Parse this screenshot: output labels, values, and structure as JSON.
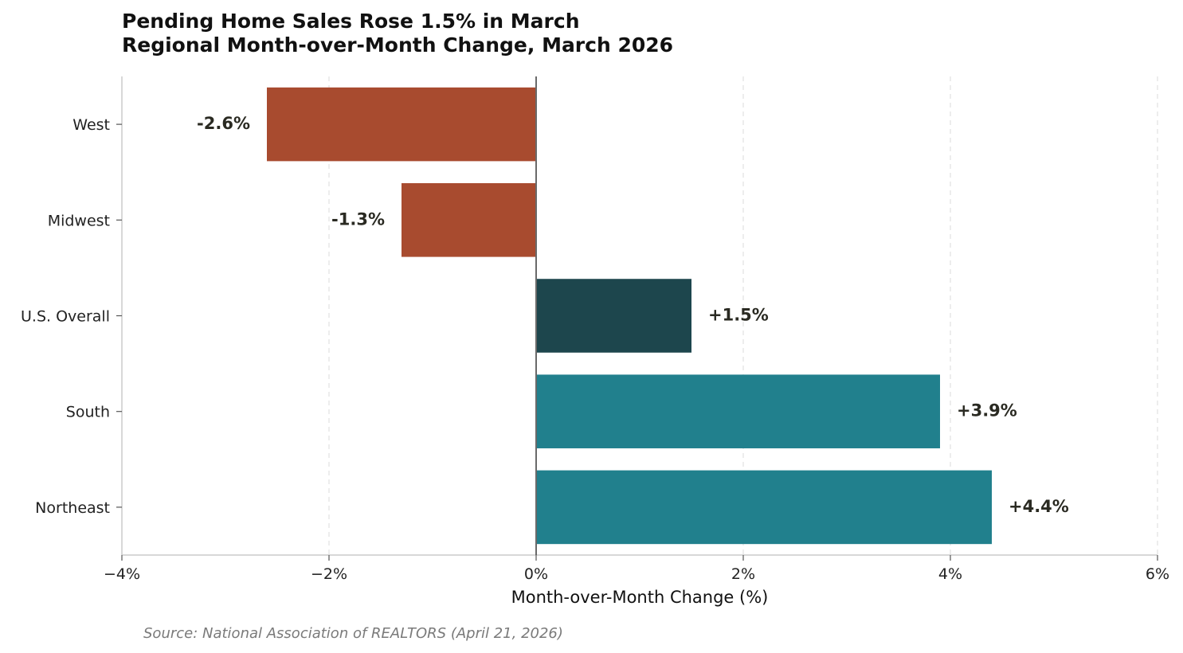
{
  "chart_data": {
    "type": "bar",
    "orientation": "horizontal",
    "title": "Pending Home Sales Rose 1.5% in March",
    "subtitle": "Regional Month-over-Month Change, March 2026",
    "xlabel": "Month-over-Month Change (%)",
    "ylabel": "",
    "xlim": [
      -4,
      6
    ],
    "xticks": [
      -4,
      -2,
      0,
      2,
      4,
      6
    ],
    "xtick_labels": [
      "−4%",
      "−2%",
      "0%",
      "2%",
      "4%",
      "6%"
    ],
    "grid": "vertical dashed",
    "categories": [
      "West",
      "Midwest",
      "U.S. Overall",
      "South",
      "Northeast"
    ],
    "values": [
      -2.6,
      -1.3,
      1.5,
      3.9,
      4.4
    ],
    "data_labels": [
      "-2.6%",
      "-1.3%",
      "+1.5%",
      "+3.9%",
      "+4.4%"
    ],
    "bar_colors": [
      "#a84b2f",
      "#a84b2f",
      "#1d464d",
      "#21808d",
      "#21808d"
    ],
    "source": "Source: National Association of REALTORS (April 21, 2026)"
  }
}
